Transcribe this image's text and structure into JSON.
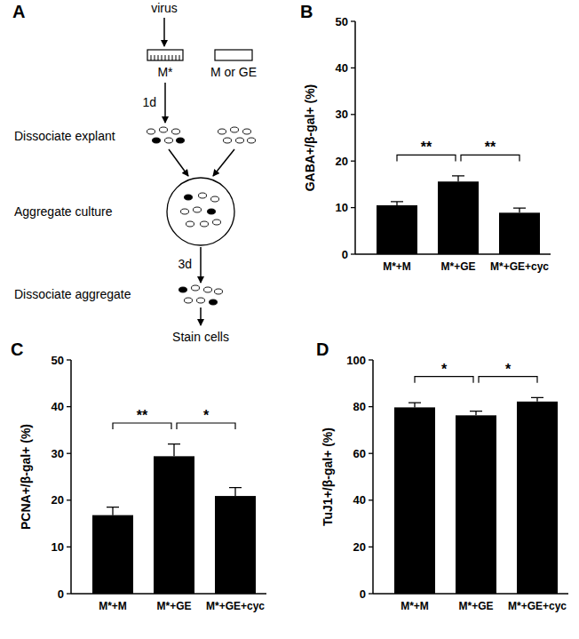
{
  "diagram": {
    "panel": "A",
    "virus": "virus",
    "explant_infected": "M*",
    "explant_other": "M or GE",
    "durations": [
      "1d",
      "3d"
    ],
    "steps": [
      "Dissociate explant",
      "Aggregate culture",
      "Dissociate aggregate",
      "Stain cells"
    ]
  },
  "chart_data": [
    {
      "type": "bar",
      "title": "B",
      "y_label": "GABA+/β-gal+ (%)",
      "color": "#000000",
      "categories": [
        "M*+M",
        "M*+GE",
        "M*+GE+cyc"
      ],
      "values": [
        10.5,
        15.6,
        8.9
      ],
      "errors": [
        0.8,
        1.2,
        1.0
      ],
      "ylim": [
        0,
        50
      ],
      "yticks": [
        0,
        10,
        20,
        30,
        40,
        50
      ],
      "annotations": [
        {
          "from": 0,
          "to": 1,
          "label": "**"
        },
        {
          "from": 1,
          "to": 2,
          "label": "**"
        }
      ]
    },
    {
      "type": "bar",
      "title": "C",
      "y_label": "PCNA+/β-gal+ (%)",
      "color": "#000000",
      "categories": [
        "M*+M",
        "M*+GE",
        "M*+GE+cyc"
      ],
      "values": [
        16.8,
        29.4,
        20.9
      ],
      "errors": [
        1.7,
        2.6,
        1.8
      ],
      "ylim": [
        0,
        50
      ],
      "yticks": [
        0,
        10,
        20,
        30,
        40,
        50
      ],
      "annotations": [
        {
          "from": 0,
          "to": 1,
          "label": "**"
        },
        {
          "from": 1,
          "to": 2,
          "label": "*"
        }
      ]
    },
    {
      "type": "bar",
      "title": "D",
      "y_label": "TuJ1+/β-gal+ (%)",
      "color": "#000000",
      "categories": [
        "M*+M",
        "M*+GE",
        "M*+GE+cyc"
      ],
      "values": [
        79.7,
        76.3,
        82.2
      ],
      "errors": [
        2.0,
        1.8,
        1.7
      ],
      "ylim": [
        0,
        100
      ],
      "yticks": [
        0,
        20,
        40,
        60,
        80,
        100
      ],
      "annotations": [
        {
          "from": 0,
          "to": 1,
          "label": "*"
        },
        {
          "from": 1,
          "to": 2,
          "label": "*"
        }
      ]
    }
  ]
}
